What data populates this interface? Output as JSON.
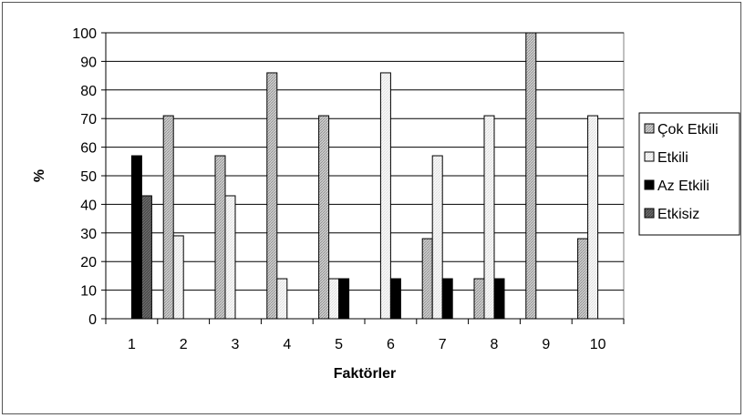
{
  "chart_data": {
    "type": "bar",
    "categories": [
      "1",
      "2",
      "3",
      "4",
      "5",
      "6",
      "7",
      "8",
      "9",
      "10"
    ],
    "series": [
      {
        "name": "Çok Etkili",
        "values": [
          0,
          71,
          57,
          86,
          71,
          0,
          28,
          14,
          100,
          28
        ],
        "pattern": "hatched-gray"
      },
      {
        "name": "Etkili",
        "values": [
          0,
          29,
          43,
          14,
          14,
          86,
          57,
          71,
          0,
          71
        ],
        "pattern": "hatched-light"
      },
      {
        "name": "Az Etkili",
        "values": [
          57,
          0,
          0,
          0,
          14,
          14,
          14,
          14,
          0,
          0
        ],
        "pattern": "solid-black"
      },
      {
        "name": "Etkisiz",
        "values": [
          43,
          0,
          0,
          0,
          0,
          0,
          0,
          0,
          0,
          0
        ],
        "pattern": "dark-gray"
      }
    ],
    "xlabel": "Faktörler",
    "ylabel": "%",
    "ylim": [
      0,
      100
    ],
    "yticks": [
      0,
      10,
      20,
      30,
      40,
      50,
      60,
      70,
      80,
      90,
      100
    ],
    "grid": true,
    "legend": "right",
    "colors": {
      "hatched-gray": "#c8c8c8",
      "hatched-light": "#f4f4f4",
      "solid-black": "#000000",
      "dark-gray": "#555555",
      "gridline": "#000000",
      "border": "#808080"
    }
  }
}
